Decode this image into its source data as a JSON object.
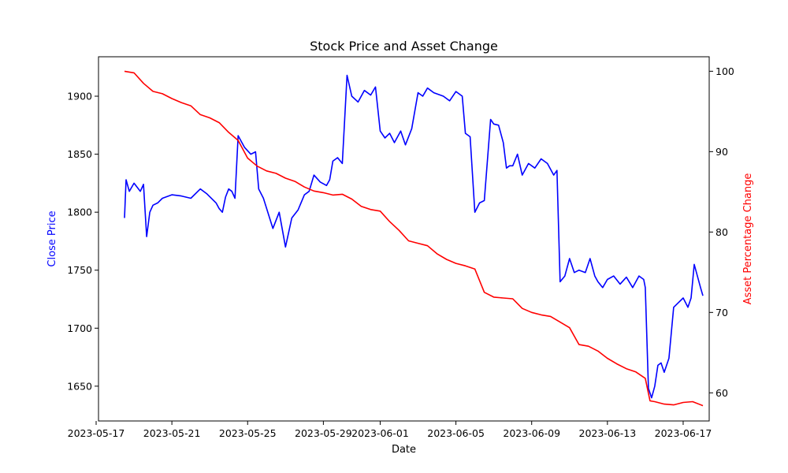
{
  "chart_data": {
    "type": "line",
    "title": "Stock Price and Asset Change",
    "xlabel": "Date",
    "ylabel_left": "Close Price",
    "ylabel_right": "Asset Percentage Change",
    "xlim": [
      "2023-05-17T03:00",
      "2023-06-18T09:00"
    ],
    "ylim_left": [
      1620,
      1934
    ],
    "ylim_right": [
      56.5,
      101.8
    ],
    "x_ticks": [
      "2023-05-17",
      "2023-05-21",
      "2023-05-25",
      "2023-05-29",
      "2023-06-01",
      "2023-06-05",
      "2023-06-09",
      "2023-06-13",
      "2023-06-17"
    ],
    "left_ticks": [
      1650,
      1700,
      1750,
      1800,
      1850,
      1900
    ],
    "right_ticks": [
      60,
      70,
      80,
      90,
      100
    ],
    "colors": {
      "left": "#0000ff",
      "right": "#ff0000"
    },
    "series": [
      {
        "axis": "left",
        "x": [
          "2023-05-18T12:00",
          "2023-05-18T14:00",
          "2023-05-18T18:00",
          "2023-05-19T00:00",
          "2023-05-19T08:00",
          "2023-05-19T12:00",
          "2023-05-19T16:00",
          "2023-05-19T20:00",
          "2023-05-20T00:00",
          "2023-05-20T06:00",
          "2023-05-20T12:00",
          "2023-05-21T00:00",
          "2023-05-21T12:00",
          "2023-05-22T00:00",
          "2023-05-22T12:00",
          "2023-05-22T20:00",
          "2023-05-23T08:00",
          "2023-05-23T12:00",
          "2023-05-23T16:00",
          "2023-05-23T20:00",
          "2023-05-24T00:00",
          "2023-05-24T04:00",
          "2023-05-24T08:00",
          "2023-05-24T12:00",
          "2023-05-24T20:00",
          "2023-05-25T04:00",
          "2023-05-25T10:00",
          "2023-05-25T14:00",
          "2023-05-25T20:00",
          "2023-05-26T08:00",
          "2023-05-26T16:00",
          "2023-05-27T00:00",
          "2023-05-27T08:00",
          "2023-05-27T16:00",
          "2023-05-28T00:00",
          "2023-05-28T06:00",
          "2023-05-28T12:00",
          "2023-05-28T20:00",
          "2023-05-29T04:00",
          "2023-05-29T08:00",
          "2023-05-29T12:00",
          "2023-05-29T18:00",
          "2023-05-30T00:00",
          "2023-05-30T06:00",
          "2023-05-30T12:00",
          "2023-05-30T20:00",
          "2023-05-31T04:00",
          "2023-05-31T12:00",
          "2023-05-31T18:00",
          "2023-06-01T00:00",
          "2023-06-01T06:00",
          "2023-06-01T12:00",
          "2023-06-01T18:00",
          "2023-06-02T02:00",
          "2023-06-02T08:00",
          "2023-06-02T16:00",
          "2023-06-03T00:00",
          "2023-06-03T06:00",
          "2023-06-03T12:00",
          "2023-06-03T20:00",
          "2023-06-04T08:00",
          "2023-06-04T16:00",
          "2023-06-05T00:00",
          "2023-06-05T08:00",
          "2023-06-05T12:00",
          "2023-06-05T18:00",
          "2023-06-06T00:00",
          "2023-06-06T06:00",
          "2023-06-06T12:00",
          "2023-06-06T20:00",
          "2023-06-07T00:00",
          "2023-06-07T06:00",
          "2023-06-07T12:00",
          "2023-06-07T16:00",
          "2023-06-07T20:00",
          "2023-06-08T00:00",
          "2023-06-08T06:00",
          "2023-06-08T12:00",
          "2023-06-08T20:00",
          "2023-06-09T04:00",
          "2023-06-09T12:00",
          "2023-06-09T20:00",
          "2023-06-10T04:00",
          "2023-06-10T08:00",
          "2023-06-10T12:00",
          "2023-06-10T18:00",
          "2023-06-11T00:00",
          "2023-06-11T06:00",
          "2023-06-11T12:00",
          "2023-06-11T20:00",
          "2023-06-12T02:00",
          "2023-06-12T08:00",
          "2023-06-12T12:00",
          "2023-06-12T18:00",
          "2023-06-13T00:00",
          "2023-06-13T08:00",
          "2023-06-13T16:00",
          "2023-06-14T00:00",
          "2023-06-14T08:00",
          "2023-06-14T16:00",
          "2023-06-14T22:00",
          "2023-06-15T00:00",
          "2023-06-15T04:00",
          "2023-06-15T08:00",
          "2023-06-15T12:00",
          "2023-06-15T16:00",
          "2023-06-15T20:00",
          "2023-06-16T00:00",
          "2023-06-16T06:00",
          "2023-06-16T12:00",
          "2023-06-16T18:00",
          "2023-06-17T00:00",
          "2023-06-17T06:00",
          "2023-06-17T10:00",
          "2023-06-17T14:00",
          "2023-06-17T18:00",
          "2023-06-17T22:00",
          "2023-06-18T01:00"
        ],
        "values": [
          1795,
          1828,
          1818,
          1825,
          1818,
          1824,
          1779,
          1800,
          1806,
          1808,
          1812,
          1815,
          1814,
          1812,
          1820,
          1816,
          1808,
          1803,
          1800,
          1813,
          1820,
          1818,
          1812,
          1866,
          1856,
          1850,
          1852,
          1820,
          1812,
          1786,
          1800,
          1770,
          1795,
          1802,
          1815,
          1818,
          1832,
          1826,
          1823,
          1828,
          1844,
          1847,
          1842,
          1918,
          1900,
          1895,
          1905,
          1901,
          1908,
          1870,
          1864,
          1868,
          1860,
          1870,
          1858,
          1872,
          1903,
          1900,
          1907,
          1903,
          1900,
          1896,
          1904,
          1900,
          1868,
          1865,
          1800,
          1808,
          1810,
          1880,
          1876,
          1875,
          1860,
          1838,
          1840,
          1840,
          1850,
          1832,
          1842,
          1838,
          1846,
          1842,
          1832,
          1836,
          1740,
          1745,
          1760,
          1748,
          1750,
          1748,
          1760,
          1745,
          1740,
          1735,
          1742,
          1745,
          1738,
          1744,
          1735,
          1745,
          1742,
          1735,
          1648,
          1640,
          1650,
          1668,
          1670,
          1662,
          1674,
          1718,
          1722,
          1726,
          1718,
          1726,
          1755,
          1745,
          1735,
          1728
        ]
      },
      {
        "axis": "right",
        "x": [
          "2023-05-18T12:00",
          "2023-05-19T00:00",
          "2023-05-19T12:00",
          "2023-05-20T00:00",
          "2023-05-20T12:00",
          "2023-05-21T00:00",
          "2023-05-21T12:00",
          "2023-05-22T00:00",
          "2023-05-22T12:00",
          "2023-05-23T00:00",
          "2023-05-23T12:00",
          "2023-05-24T00:00",
          "2023-05-24T12:00",
          "2023-05-25T00:00",
          "2023-05-25T12:00",
          "2023-05-26T00:00",
          "2023-05-26T12:00",
          "2023-05-27T00:00",
          "2023-05-27T12:00",
          "2023-05-28T00:00",
          "2023-05-28T12:00",
          "2023-05-29T00:00",
          "2023-05-29T12:00",
          "2023-05-30T00:00",
          "2023-05-30T12:00",
          "2023-05-31T00:00",
          "2023-05-31T12:00",
          "2023-06-01T00:00",
          "2023-06-01T12:00",
          "2023-06-02T00:00",
          "2023-06-02T12:00",
          "2023-06-03T00:00",
          "2023-06-03T12:00",
          "2023-06-04T00:00",
          "2023-06-04T12:00",
          "2023-06-05T00:00",
          "2023-06-05T12:00",
          "2023-06-06T00:00",
          "2023-06-06T12:00",
          "2023-06-07T00:00",
          "2023-06-07T12:00",
          "2023-06-08T00:00",
          "2023-06-08T12:00",
          "2023-06-09T00:00",
          "2023-06-09T12:00",
          "2023-06-10T00:00",
          "2023-06-10T12:00",
          "2023-06-11T00:00",
          "2023-06-11T12:00",
          "2023-06-12T00:00",
          "2023-06-12T12:00",
          "2023-06-13T00:00",
          "2023-06-13T12:00",
          "2023-06-14T00:00",
          "2023-06-14T12:00",
          "2023-06-15T00:00",
          "2023-06-15T06:00",
          "2023-06-15T12:00",
          "2023-06-16T00:00",
          "2023-06-16T12:00",
          "2023-06-17T00:00",
          "2023-06-17T12:00",
          "2023-06-18T01:00"
        ],
        "values": [
          100,
          99.8,
          98.5,
          97.5,
          97.2,
          96.6,
          96.1,
          95.7,
          94.6,
          94.2,
          93.6,
          92.4,
          91.4,
          89.2,
          88.2,
          87.6,
          87.3,
          86.7,
          86.3,
          85.6,
          85.1,
          84.9,
          84.6,
          84.7,
          84.1,
          83.2,
          82.8,
          82.6,
          81.3,
          80.2,
          78.9,
          78.6,
          78.3,
          77.3,
          76.6,
          76.1,
          75.8,
          75.4,
          72.5,
          71.9,
          71.8,
          71.7,
          70.5,
          70.0,
          69.7,
          69.5,
          68.8,
          68.1,
          66.0,
          65.8,
          65.2,
          64.3,
          63.6,
          63.0,
          62.6,
          61.8,
          59.0,
          58.9,
          58.6,
          58.5,
          58.8,
          58.9,
          58.4
        ]
      }
    ]
  }
}
